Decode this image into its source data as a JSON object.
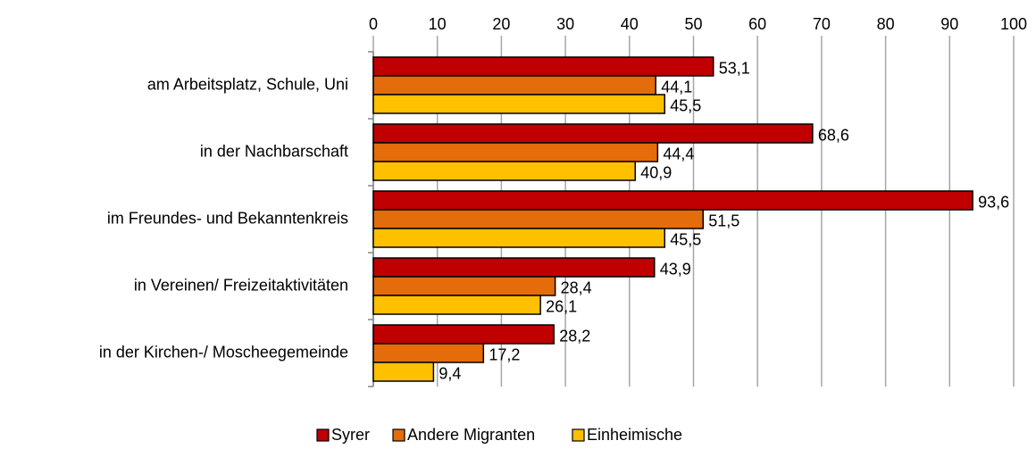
{
  "chart_data": {
    "type": "bar",
    "orientation": "horizontal",
    "categories": [
      "am Arbeitsplatz, Schule, Uni",
      "in der Nachbarschaft",
      "im Freundes- und Bekanntenkreis",
      "in Vereinen/ Freizeitaktivitäten",
      "in der Kirchen-/ Moscheegemeinde"
    ],
    "series": [
      {
        "name": "Syrer",
        "color": "#c00000",
        "values": [
          53.1,
          68.6,
          93.6,
          43.9,
          28.2
        ],
        "value_labels": [
          "53,1",
          "68,6",
          "93,6",
          "43,9",
          "28,2"
        ]
      },
      {
        "name": "Andere Migranten",
        "color": "#e46c0a",
        "values": [
          44.1,
          44.4,
          51.5,
          28.4,
          17.2
        ],
        "value_labels": [
          "44,1",
          "44,4",
          "51,5",
          "28,4",
          "17,2"
        ]
      },
      {
        "name": "Einheimische",
        "color": "#ffc000",
        "values": [
          45.5,
          40.9,
          45.5,
          26.1,
          9.4
        ],
        "value_labels": [
          "45,5",
          "40,9",
          "45,5",
          "26,1",
          "9,4"
        ]
      }
    ],
    "xlim": [
      0,
      100
    ],
    "xticks": [
      0,
      10,
      20,
      30,
      40,
      50,
      60,
      70,
      80,
      90,
      100
    ],
    "grid": true,
    "legend": "bottom"
  }
}
